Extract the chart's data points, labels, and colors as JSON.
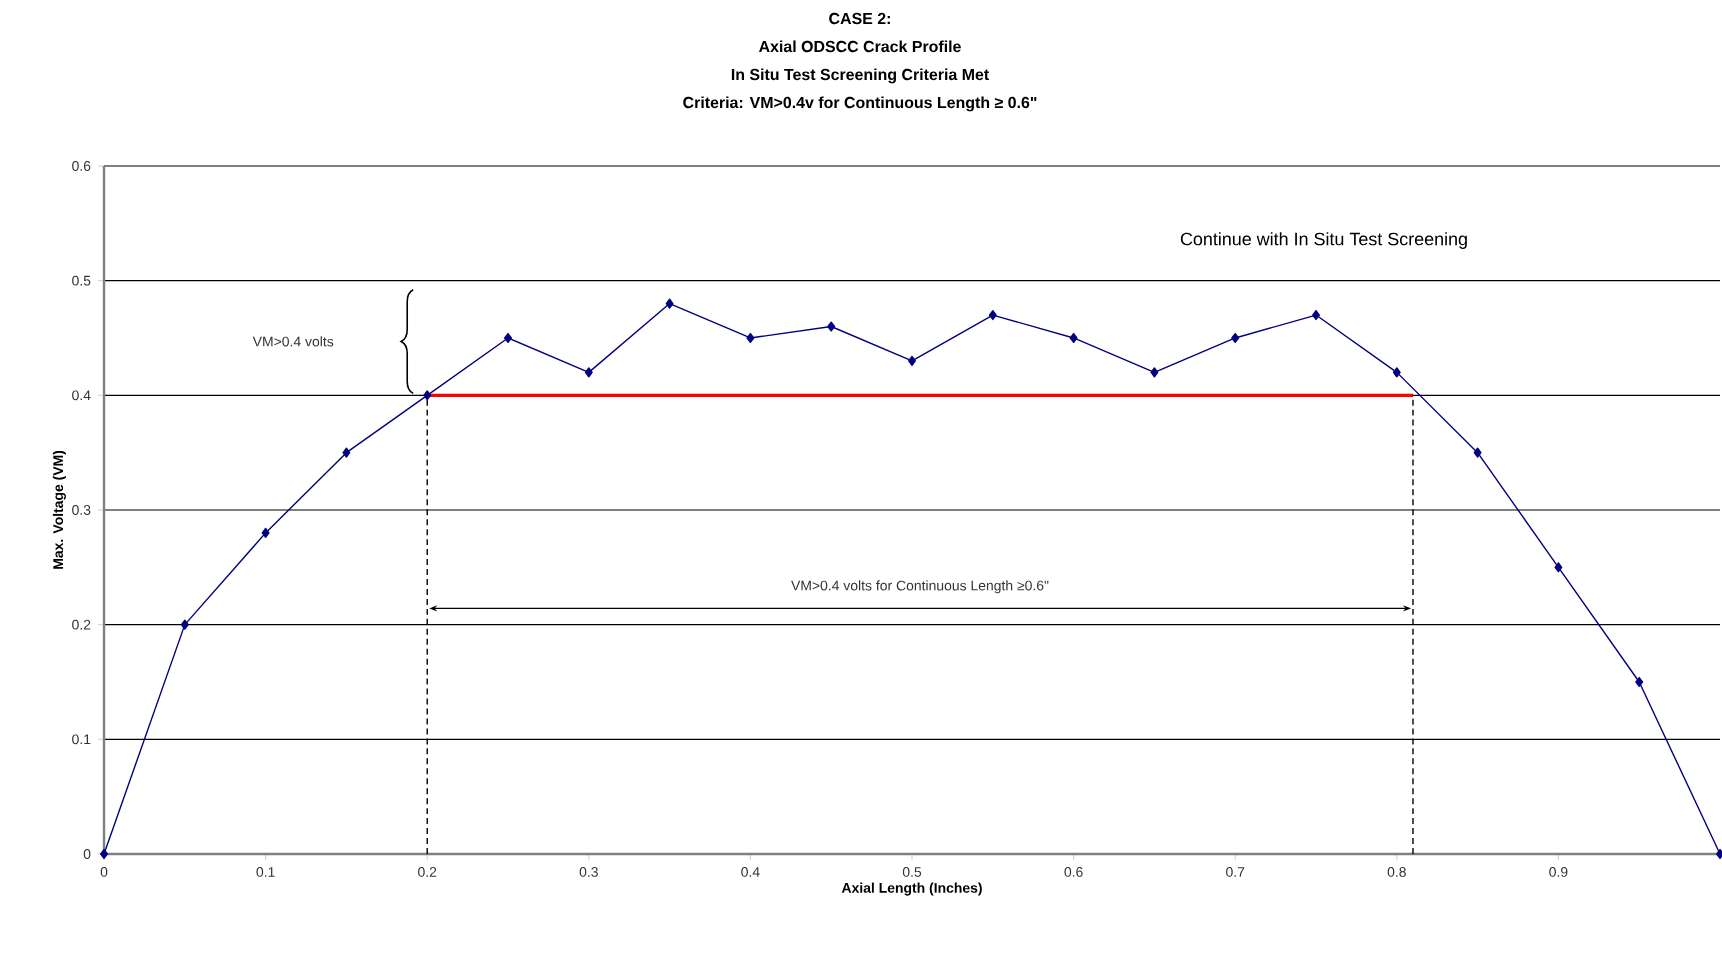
{
  "chart_data": {
    "type": "line",
    "title": "CASE 2:",
    "subtitle": "Axial ODSCC Crack Profile",
    "xlabel": "Axial Length (Inches)",
    "ylabel": "Max. Voltage (VM)",
    "xlim": [
      0,
      1
    ],
    "xticks": [
      0,
      0.1,
      0.2,
      0.3,
      0.4,
      0.5,
      0.6,
      0.7,
      0.8,
      0.9
    ],
    "ylim": [
      0,
      0.6
    ],
    "yticks": [
      0,
      0.1,
      0.2,
      0.3,
      0.4,
      0.5,
      0.6
    ],
    "grid": "y",
    "annotations": [
      "In Situ Test Screening Criteria Met",
      "Criteria: VM>0.4v for Continuous Length ≥ 0.6\"",
      "Continue with In Situ Test Screening",
      "VM>0.4 volts",
      "VM>0.4 volts for Continuous Length ≥0.6\""
    ],
    "series": [
      {
        "color": "#000080",
        "marker": "diamond",
        "x": [
          0,
          0.05,
          0.1,
          0.15,
          0.2,
          0.25,
          0.3,
          0.35,
          0.4,
          0.45,
          0.5,
          0.55,
          0.6,
          0.65,
          0.7,
          0.75,
          0.8,
          0.85,
          0.9,
          0.95,
          1.0
        ],
        "values": [
          0,
          0.2,
          0.28,
          0.35,
          0.4,
          0.45,
          0.42,
          0.48,
          0.45,
          0.46,
          0.43,
          0.47,
          0.45,
          0.42,
          0.45,
          0.47,
          0.42,
          0.35,
          0.25,
          0.15,
          0
        ]
      },
      {
        "color": "#ff0000",
        "marker": "none",
        "x": [
          0.2,
          0.81
        ],
        "values": [
          0.4,
          0.4
        ]
      },
      {
        "color": "#000000",
        "marker": "none",
        "line_style": "dashed",
        "x": [
          0.2,
          0.2
        ],
        "values": [
          0,
          0.4
        ]
      },
      {
        "color": "#000000",
        "marker": "none",
        "line_style": "dashed",
        "x": [
          0.81,
          0.81
        ],
        "values": [
          0,
          0.4
        ]
      }
    ]
  }
}
